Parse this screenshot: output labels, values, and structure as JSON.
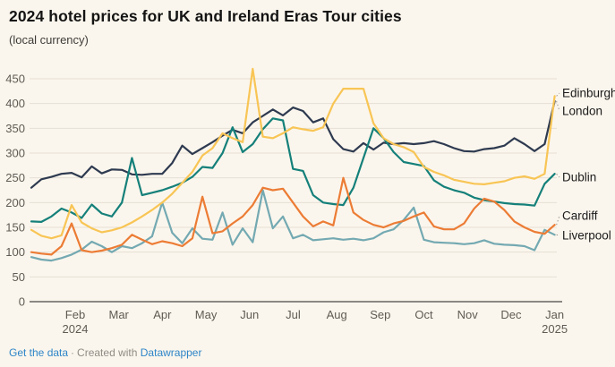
{
  "header": {
    "title": "2024 hotel prices for UK and Ireland Eras Tour cities",
    "subtitle": "(local currency)"
  },
  "footer": {
    "get_data_label": "Get the data",
    "separator": "·",
    "created_with": "Created with",
    "tool_name": "Datawrapper",
    "link_color": "#2e85c8"
  },
  "chart_data": {
    "type": "line",
    "title": "2024 hotel prices for UK and Ireland Eras Tour cities",
    "subtitle": "(local currency)",
    "xlabel": "",
    "ylabel": "",
    "grid": true,
    "legend_position": "right-end-labels",
    "y_axis": {
      "min": 0,
      "max": 450,
      "step": 50,
      "ticks": [
        0,
        50,
        100,
        150,
        200,
        250,
        300,
        350,
        400,
        450
      ]
    },
    "x_axis": {
      "unit": "weekly",
      "month_ticks": [
        "Feb",
        "Mar",
        "Apr",
        "May",
        "Jun",
        "Jul",
        "Aug",
        "Sep",
        "Oct",
        "Nov",
        "Dec",
        "Jan"
      ],
      "year_start_label": "2024",
      "year_end_label": "2025"
    },
    "colors": {
      "grid": "#e5dfd4",
      "baseline": "#1a1a1a",
      "axis_text": "#5f5b54",
      "end_label_text": "#1a1a1a",
      "connector": "#9a968f"
    },
    "series": [
      {
        "name": "London",
        "color": "#2e3a50",
        "values": [
          230,
          247,
          252,
          258,
          260,
          251,
          273,
          259,
          267,
          266,
          257,
          256,
          258,
          258,
          280,
          315,
          298,
          310,
          322,
          335,
          347,
          340,
          362,
          375,
          388,
          376,
          392,
          385,
          362,
          370,
          328,
          308,
          303,
          320,
          307,
          321,
          318,
          320,
          318,
          320,
          324,
          318,
          310,
          304,
          303,
          308,
          310,
          315,
          330,
          318,
          304,
          318,
          405
        ],
        "end_label_y": 124
      },
      {
        "name": "Dublin",
        "color": "#15807a",
        "values": [
          162,
          161,
          172,
          188,
          180,
          169,
          196,
          178,
          172,
          200,
          290,
          215,
          220,
          225,
          232,
          240,
          252,
          272,
          270,
          300,
          352,
          302,
          318,
          348,
          370,
          366,
          268,
          264,
          215,
          200,
          197,
          195,
          230,
          290,
          350,
          330,
          302,
          282,
          278,
          274,
          245,
          232,
          225,
          220,
          210,
          205,
          202,
          199,
          197,
          196,
          194,
          238,
          258
        ],
        "end_label_y": 198
      },
      {
        "name": "Liverpool",
        "color": "#74a9b2",
        "values": [
          90,
          85,
          83,
          88,
          95,
          105,
          121,
          112,
          100,
          112,
          108,
          118,
          132,
          200,
          139,
          118,
          148,
          127,
          125,
          180,
          115,
          148,
          120,
          225,
          148,
          172,
          128,
          135,
          124,
          126,
          128,
          125,
          127,
          124,
          128,
          140,
          146,
          165,
          190,
          125,
          120,
          119,
          118,
          116,
          118,
          124,
          117,
          115,
          114,
          112,
          104,
          145,
          135
        ],
        "end_label_y": 263
      },
      {
        "name": "Cardiff",
        "color": "#ec7c35",
        "values": [
          100,
          97,
          95,
          112,
          158,
          104,
          100,
          103,
          108,
          115,
          135,
          125,
          116,
          122,
          118,
          112,
          128,
          212,
          138,
          142,
          158,
          172,
          195,
          230,
          225,
          228,
          200,
          172,
          152,
          162,
          154,
          250,
          180,
          165,
          155,
          150,
          158,
          163,
          172,
          180,
          152,
          146,
          146,
          158,
          188,
          208,
          202,
          185,
          162,
          150,
          141,
          137,
          155
        ],
        "end_label_y": 241
      },
      {
        "name": "Edinburgh",
        "color": "#f8c555",
        "values": [
          145,
          133,
          128,
          134,
          195,
          160,
          148,
          140,
          144,
          150,
          160,
          172,
          185,
          200,
          218,
          240,
          262,
          295,
          310,
          340,
          330,
          322,
          470,
          333,
          330,
          340,
          352,
          348,
          345,
          352,
          400,
          430,
          430,
          430,
          360,
          330,
          318,
          312,
          302,
          272,
          262,
          255,
          246,
          242,
          238,
          237,
          240,
          243,
          250,
          253,
          248,
          258,
          415
        ],
        "end_label_y": 104
      }
    ]
  }
}
